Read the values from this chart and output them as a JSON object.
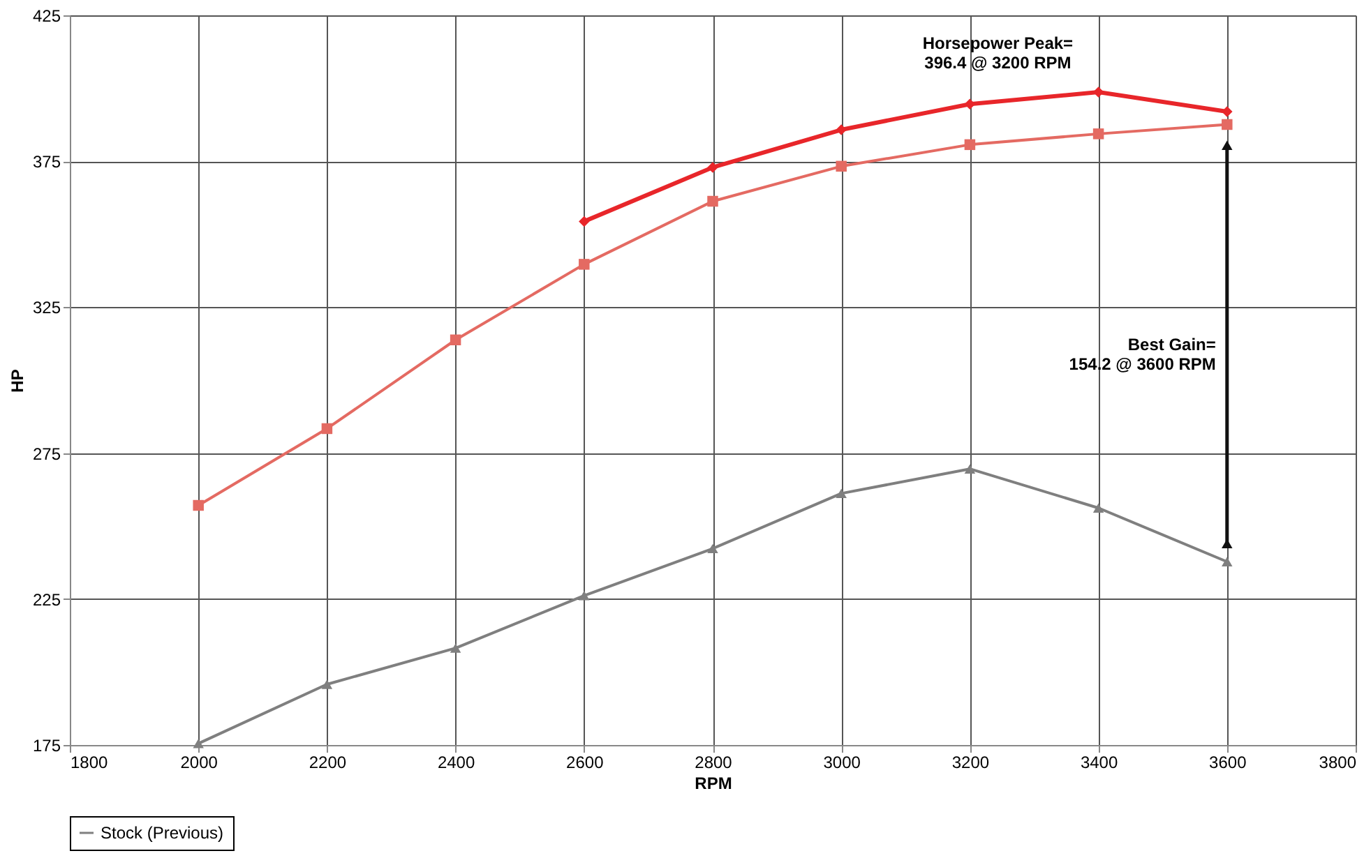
{
  "chart_data": {
    "type": "line",
    "xlabel": "RPM",
    "ylabel": "HP",
    "x": [
      2000,
      2200,
      2400,
      2600,
      2800,
      3000,
      3200,
      3400,
      3600
    ],
    "series": [
      {
        "color": "#e8262a",
        "marker": "diamond",
        "values": [
          null,
          null,
          null,
          354.4,
          372.9,
          385.8,
          394.6,
          398.7,
          392.0
        ]
      },
      {
        "color": "#e46a62",
        "marker": "square",
        "values": [
          257.1,
          283.4,
          313.8,
          339.7,
          361.3,
          373.3,
          380.7,
          384.4,
          387.6
        ]
      },
      {
        "name": "Stock (Previous)",
        "color": "#7f7f7f",
        "marker": "triangle",
        "values": [
          175.5,
          195.8,
          208.2,
          226.2,
          242.3,
          261.2,
          269.6,
          256.2,
          237.8
        ]
      },
      {
        "type": "line",
        "color": "#111111",
        "marker": "triangle",
        "x": [
          3600,
          3600
        ],
        "values": [
          380.5,
          244.0
        ]
      }
    ],
    "xlim": [
      1800,
      3800
    ],
    "xticks": [
      1800,
      2000,
      2200,
      2400,
      2600,
      2800,
      3000,
      3200,
      3400,
      3600,
      3800
    ],
    "ylim": [
      175,
      425
    ],
    "yticks": [
      175,
      225,
      275,
      325,
      375,
      425
    ],
    "grid": true,
    "legend": "bottom",
    "line_style": "solid",
    "annotations": [
      {
        "text": "Horsepower Peak=\n396.4 @ 3200 RPM",
        "x": 3200,
        "y": 396.4
      },
      "Best Gain=\n154.2 @ 3600 RPM"
    ]
  }
}
